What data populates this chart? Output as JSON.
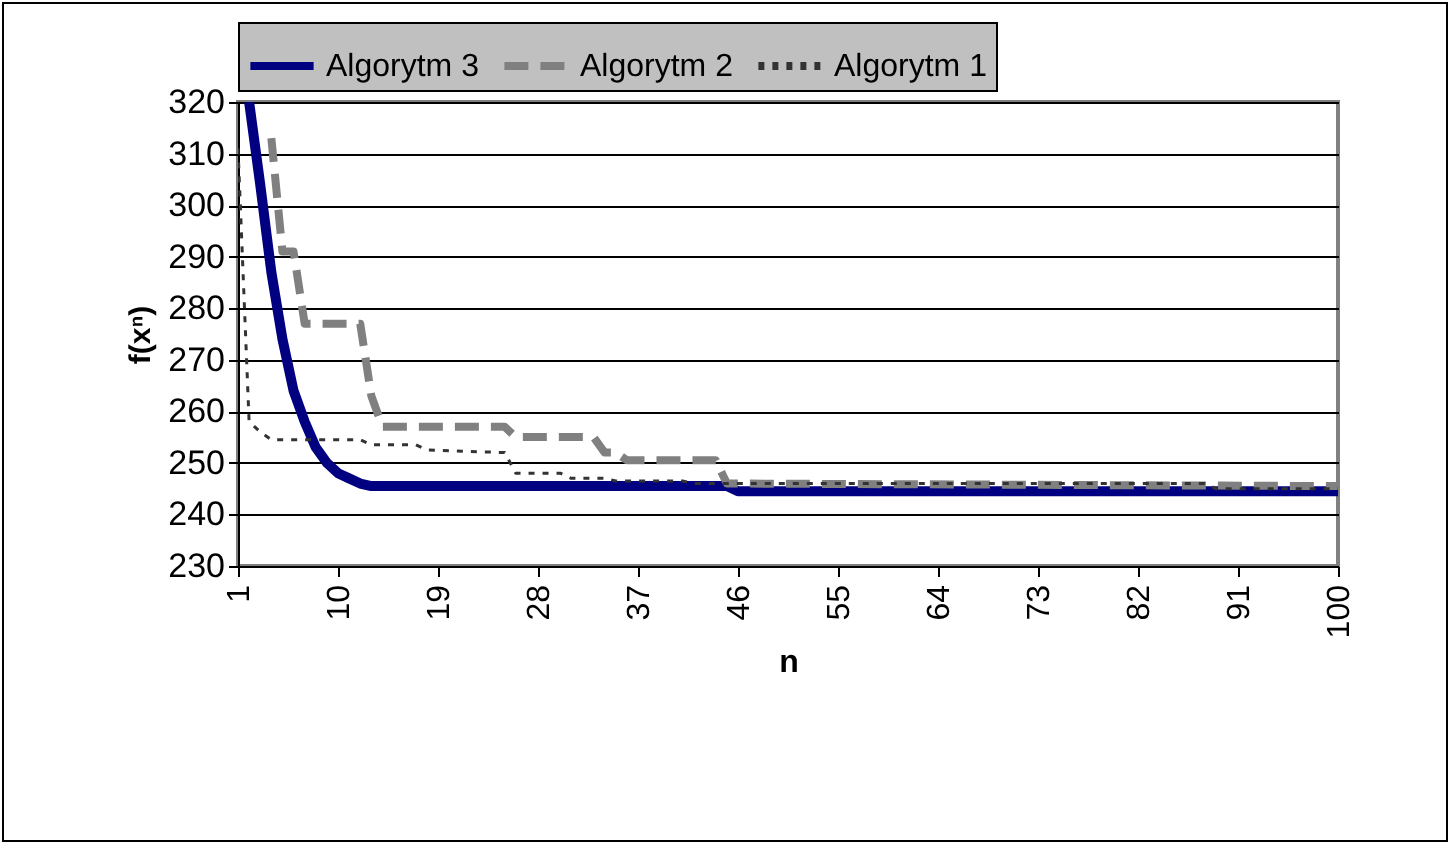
{
  "chart_data": {
    "type": "line",
    "xlabel": "n",
    "ylabel": "f(xⁿ)",
    "xlim": [
      1,
      100
    ],
    "xticks": [
      1,
      10,
      19,
      28,
      37,
      46,
      55,
      64,
      73,
      82,
      91,
      100
    ],
    "ylim": [
      230,
      320
    ],
    "yticks": [
      230,
      240,
      250,
      260,
      270,
      280,
      290,
      300,
      310,
      320
    ],
    "grid": "y",
    "legend": "top",
    "marker": "none",
    "series": [
      {
        "name": "Algorytm 3",
        "color": "#000080",
        "line_style": "solid",
        "x": [
          2,
          3,
          4,
          5,
          6,
          7,
          8,
          9,
          10,
          11,
          12,
          13,
          45,
          46,
          100
        ],
        "values": [
          320,
          304,
          287,
          274,
          264,
          258,
          253,
          250,
          248,
          247,
          246,
          245.5,
          245.5,
          244.5,
          244.5
        ]
      },
      {
        "name": "Algorytm 2",
        "color": "#808080",
        "line_style": "dashed",
        "x": [
          4,
          5,
          6,
          7,
          12,
          13,
          14,
          25,
          26,
          33,
          34,
          35,
          36,
          44,
          45,
          100
        ],
        "values": [
          313,
          291,
          291,
          277,
          277,
          263,
          257,
          257,
          255,
          255,
          252,
          252,
          250.5,
          250.5,
          246,
          245.5
        ]
      },
      {
        "name": "Algorytm 1",
        "color": "#333333",
        "line_style": "dotted",
        "x": [
          1,
          2,
          3,
          4,
          12,
          13,
          17,
          18,
          25,
          26,
          30,
          31,
          34,
          35,
          41,
          42,
          88,
          89,
          100
        ],
        "values": [
          311,
          258,
          256,
          254.5,
          254.5,
          253.5,
          253.5,
          252.5,
          252,
          248,
          248,
          247,
          247,
          246.5,
          246.5,
          246,
          246,
          245,
          245
        ]
      }
    ]
  }
}
